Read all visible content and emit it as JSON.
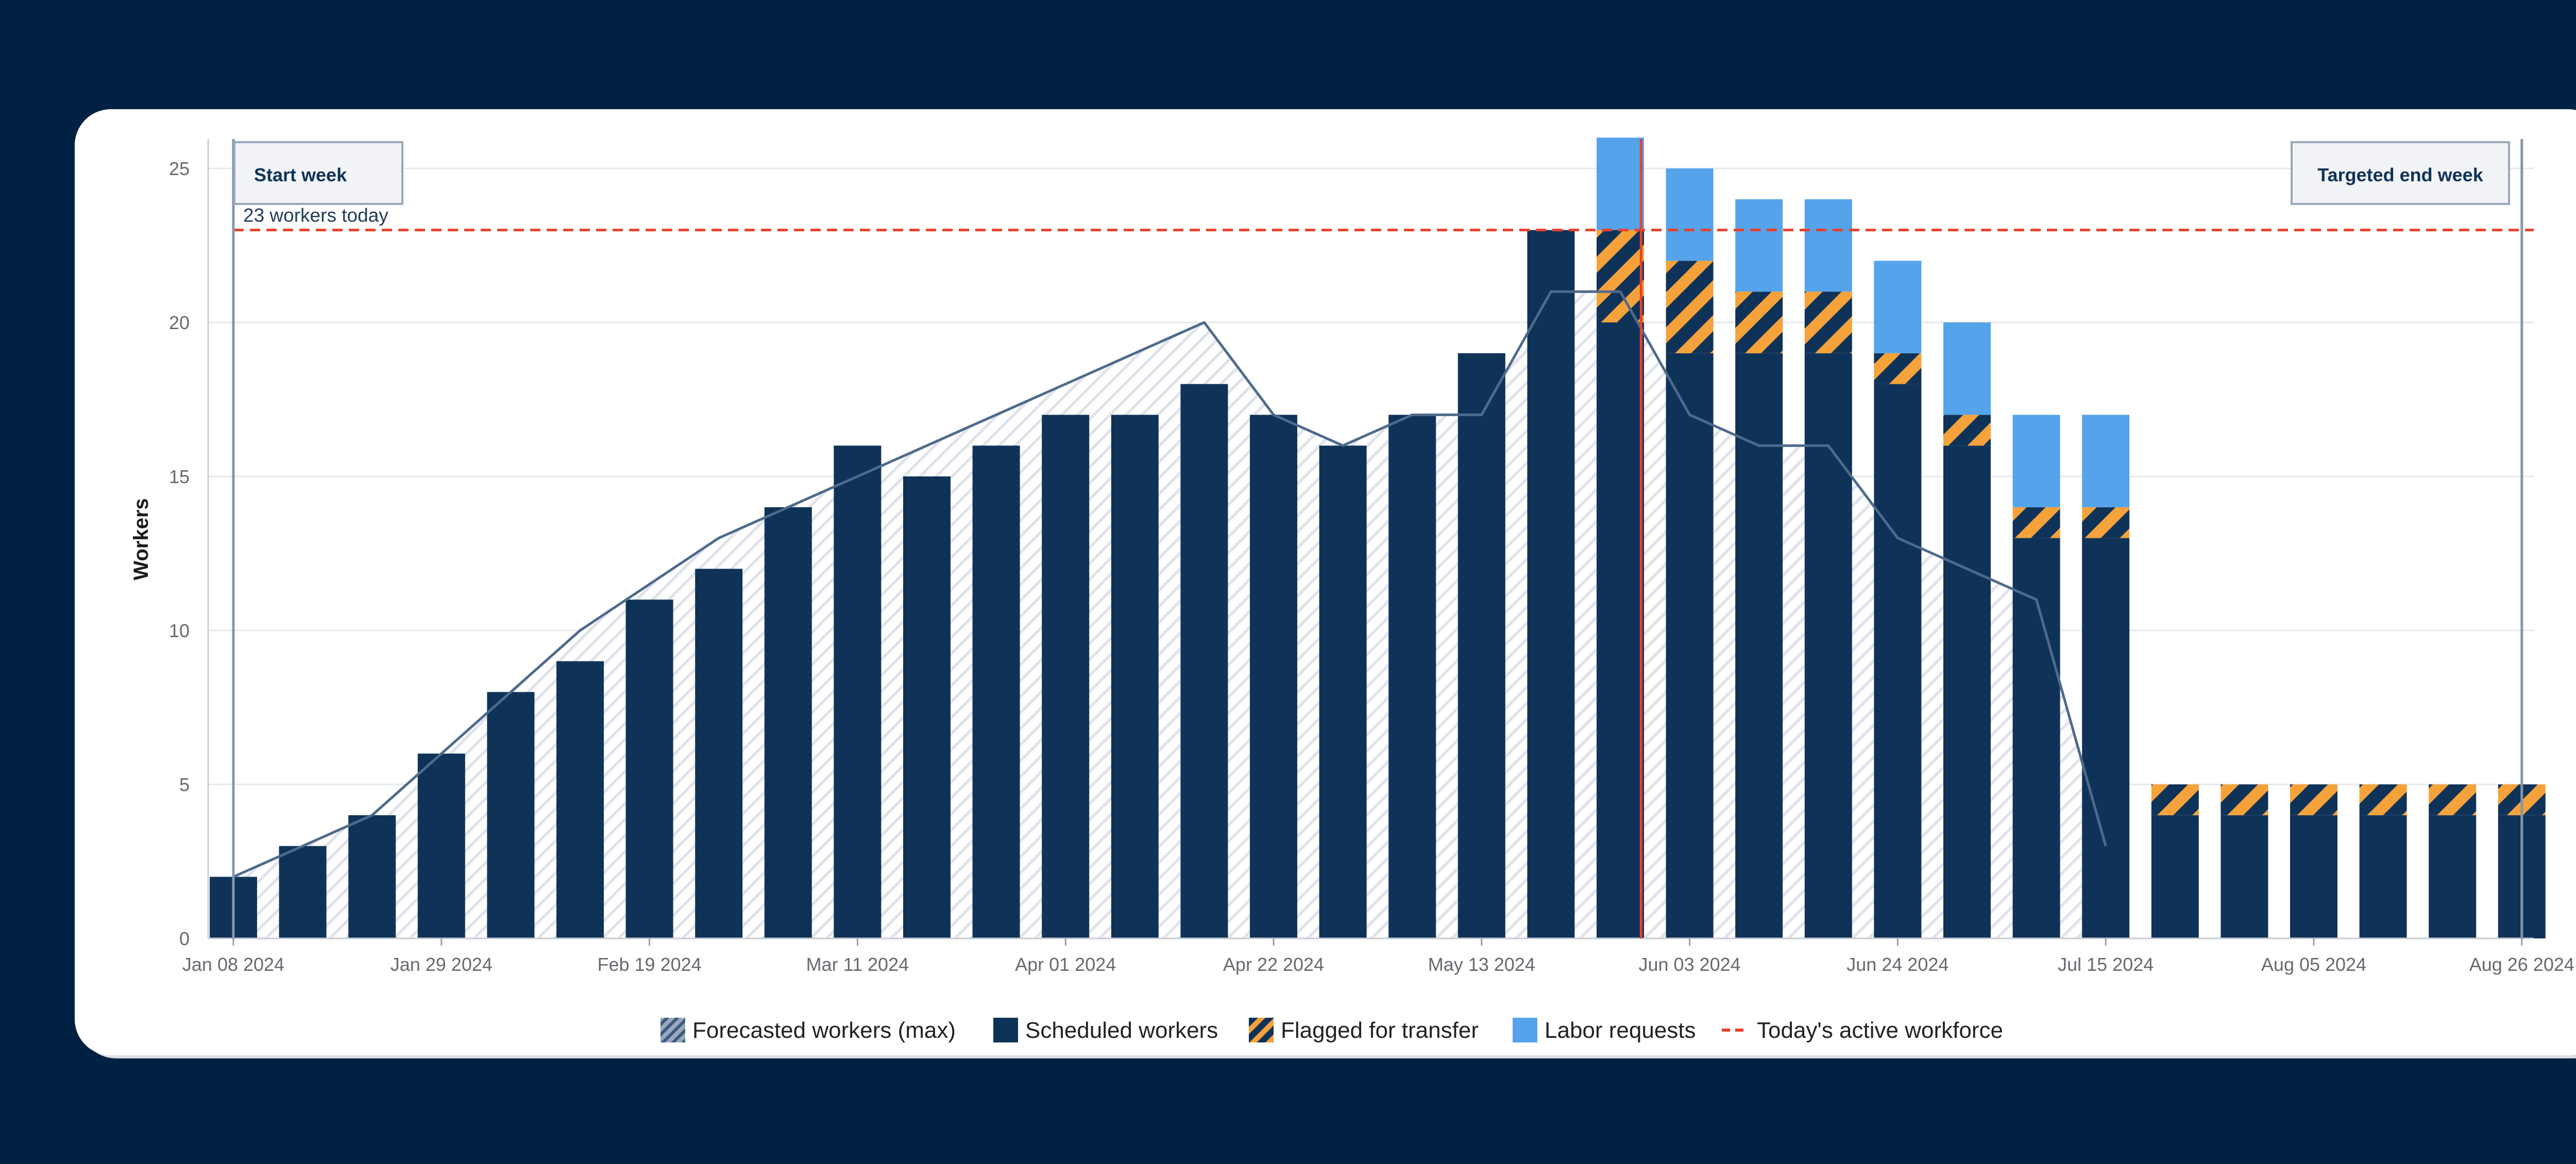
{
  "chart_data": {
    "type": "bar",
    "title": "",
    "xlabel": "",
    "ylabel": "Workers",
    "ylim": [
      0,
      26
    ],
    "yticks": [
      0,
      5,
      10,
      15,
      20,
      25
    ],
    "weeks": [
      "2024-01-08",
      "2024-01-15",
      "2024-01-22",
      "2024-01-29",
      "2024-02-05",
      "2024-02-12",
      "2024-02-19",
      "2024-02-26",
      "2024-03-04",
      "2024-03-11",
      "2024-03-18",
      "2024-03-25",
      "2024-04-01",
      "2024-04-08",
      "2024-04-15",
      "2024-04-22",
      "2024-04-29",
      "2024-05-06",
      "2024-05-13",
      "2024-05-20",
      "2024-05-27",
      "2024-06-03",
      "2024-06-10",
      "2024-06-17",
      "2024-06-24",
      "2024-07-01",
      "2024-07-08",
      "2024-07-15",
      "2024-07-22",
      "2024-07-29",
      "2024-08-05",
      "2024-08-12",
      "2024-08-19",
      "2024-08-26"
    ],
    "x_tick_labels": [
      {
        "index": 0,
        "label": "Jan 08 2024"
      },
      {
        "index": 3,
        "label": "Jan 29 2024"
      },
      {
        "index": 6,
        "label": "Feb 19 2024"
      },
      {
        "index": 9,
        "label": "Mar 11 2024"
      },
      {
        "index": 12,
        "label": "Apr 01 2024"
      },
      {
        "index": 15,
        "label": "Apr 22 2024"
      },
      {
        "index": 18,
        "label": "May 13 2024"
      },
      {
        "index": 21,
        "label": "Jun 03 2024"
      },
      {
        "index": 24,
        "label": "Jun 24 2024"
      },
      {
        "index": 27,
        "label": "Jul 15 2024"
      },
      {
        "index": 30,
        "label": "Aug 05 2024"
      },
      {
        "index": 33,
        "label": "Aug 26 2024"
      }
    ],
    "series": [
      {
        "name": "Scheduled workers",
        "kind": "bar",
        "color": "#0f3358",
        "values": [
          2,
          3,
          4,
          6,
          8,
          9,
          11,
          12,
          14,
          16,
          15,
          16,
          17,
          17,
          18,
          17,
          16,
          17,
          19,
          23,
          20,
          19,
          19,
          19,
          18,
          16,
          13,
          13,
          4,
          4,
          4,
          4,
          4,
          4
        ]
      },
      {
        "name": "Flagged for transfer",
        "kind": "bar",
        "color": "#f5a23a",
        "values": [
          0,
          0,
          0,
          0,
          0,
          0,
          0,
          0,
          0,
          0,
          0,
          0,
          0,
          0,
          0,
          0,
          0,
          0,
          0,
          0,
          3,
          3,
          2,
          2,
          1,
          1,
          1,
          1,
          1,
          1,
          1,
          1,
          1,
          1
        ]
      },
      {
        "name": "Labor requests",
        "kind": "bar",
        "color": "#55a3eb",
        "values": [
          0,
          0,
          0,
          0,
          0,
          0,
          0,
          0,
          0,
          0,
          0,
          0,
          0,
          0,
          0,
          0,
          0,
          0,
          0,
          0,
          3,
          3,
          3,
          3,
          3,
          3,
          3,
          3,
          0,
          0,
          0,
          0,
          0,
          0
        ]
      },
      {
        "name": "Forecasted workers (max)",
        "kind": "area",
        "points": [
          [
            0,
            2
          ],
          [
            2,
            4
          ],
          [
            5,
            10
          ],
          [
            7,
            13
          ],
          [
            10,
            16
          ],
          [
            14,
            20
          ],
          [
            15,
            17
          ],
          [
            16,
            16
          ],
          [
            17,
            17
          ],
          [
            18,
            17
          ],
          [
            19,
            21
          ],
          [
            20,
            21
          ],
          [
            21,
            17
          ],
          [
            22,
            16
          ],
          [
            23,
            16
          ],
          [
            24,
            13
          ],
          [
            25,
            12
          ],
          [
            26,
            11
          ],
          [
            27,
            3
          ]
        ]
      }
    ],
    "reference_line": {
      "label": "Today's active workforce",
      "value": 23,
      "note": "23 workers today",
      "color": "#e8412c"
    },
    "today_marker_index": 20.3,
    "start_marker": {
      "label": "Start week",
      "index": 0
    },
    "end_marker": {
      "label": "Targeted end week",
      "index": 33
    },
    "legend": [
      "Forecasted workers (max)",
      "Scheduled workers",
      "Flagged for transfer",
      "Labor requests",
      "Today's active workforce"
    ],
    "legend_position": "bottom-center"
  }
}
